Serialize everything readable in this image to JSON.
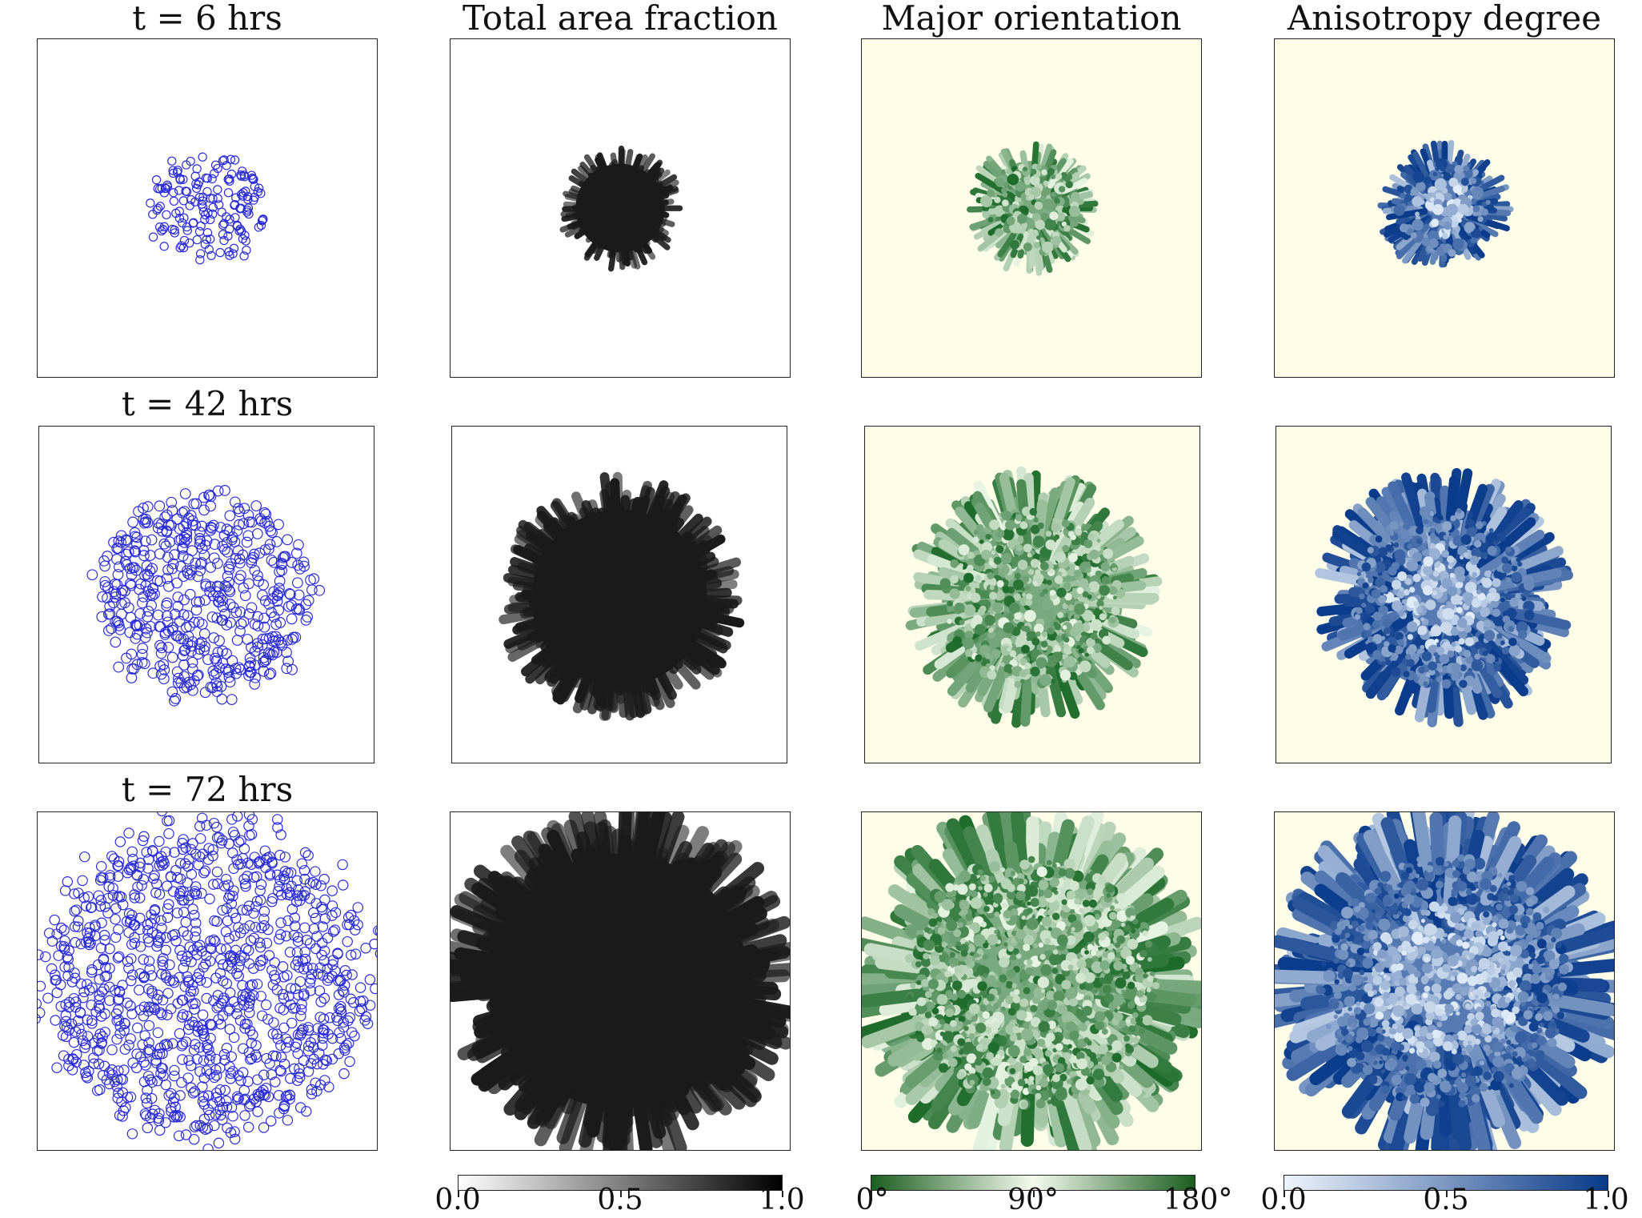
{
  "columns": {
    "col1": "t = 6 hrs",
    "col2": "Total area fraction",
    "col3": "Major orientation",
    "col4": "Anisotropy degree"
  },
  "rows": {
    "row2": "t = 42 hrs",
    "row3": "t = 72 hrs"
  },
  "colorbars": {
    "area_fraction": {
      "ticks": [
        "0.0",
        "0.5",
        "1.0"
      ],
      "colors": [
        "#ffffff",
        "#000000"
      ]
    },
    "orientation": {
      "ticks": [
        "0°",
        "90°",
        "180°"
      ],
      "colors": [
        "#1b5e20",
        "#f5fbee",
        "#1b5e20"
      ]
    },
    "anisotropy": {
      "ticks": [
        "0.0",
        "0.5",
        "1.0"
      ],
      "colors": [
        "#eef4fb",
        "#083a88"
      ]
    }
  },
  "colors": {
    "cell_outline": "#2b2bd6",
    "orientation_bg": "#fdfde8",
    "orientation_dark": "#1d6b2a",
    "orientation_light": "#e9f5e4",
    "anisotropy_dark": "#0b3c8c",
    "anisotropy_light": "#e3eef9",
    "area_fill": "#1a1a1a"
  }
}
